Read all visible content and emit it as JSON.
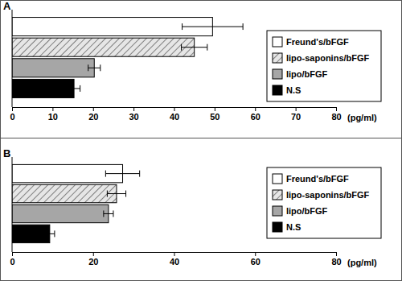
{
  "chart_data": [
    {
      "type": "bar",
      "title": "A",
      "orientation": "horizontal",
      "legend": "right",
      "xlabel": "(pg/ml)",
      "xlim": [
        0,
        80
      ],
      "xticks": [
        0,
        10,
        20,
        30,
        40,
        50,
        60,
        70,
        80
      ],
      "categories": [
        null
      ],
      "series": [
        {
          "name": "Freund's/bFGF",
          "color": "#ffffff",
          "values": [
            49.5
          ],
          "errors": [
            7.5
          ]
        },
        {
          "name": "lipo-saponins/bFGF",
          "color": "#e6e6e6",
          "marker": "hatch",
          "values": [
            45.0
          ],
          "errors": [
            3.2
          ]
        },
        {
          "name": "lipo/bFGF",
          "color": "#a6a6a6",
          "values": [
            20.3
          ],
          "errors": [
            1.5
          ]
        },
        {
          "name": "N.S",
          "color": "#000000",
          "values": [
            15.3
          ],
          "errors": [
            1.5
          ]
        }
      ]
    },
    {
      "type": "bar",
      "title": "B",
      "orientation": "horizontal",
      "legend": "right",
      "xlabel": "(pg/ml)",
      "xlim": [
        0,
        80
      ],
      "xticks": [
        0,
        20,
        40,
        60,
        80
      ],
      "categories": [
        null
      ],
      "series": [
        {
          "name": "Freund's/bFGF",
          "color": "#ffffff",
          "values": [
            27.3
          ],
          "errors": [
            4.2
          ]
        },
        {
          "name": "lipo-saponins/bFGF",
          "color": "#e6e6e6",
          "marker": "hatch",
          "values": [
            25.8
          ],
          "errors": [
            2.3
          ]
        },
        {
          "name": "lipo/bFGF",
          "color": "#a6a6a6",
          "values": [
            23.8
          ],
          "errors": [
            1.2
          ]
        },
        {
          "name": "N.S",
          "color": "#000000",
          "values": [
            9.3
          ],
          "errors": [
            1.2
          ]
        }
      ]
    }
  ]
}
